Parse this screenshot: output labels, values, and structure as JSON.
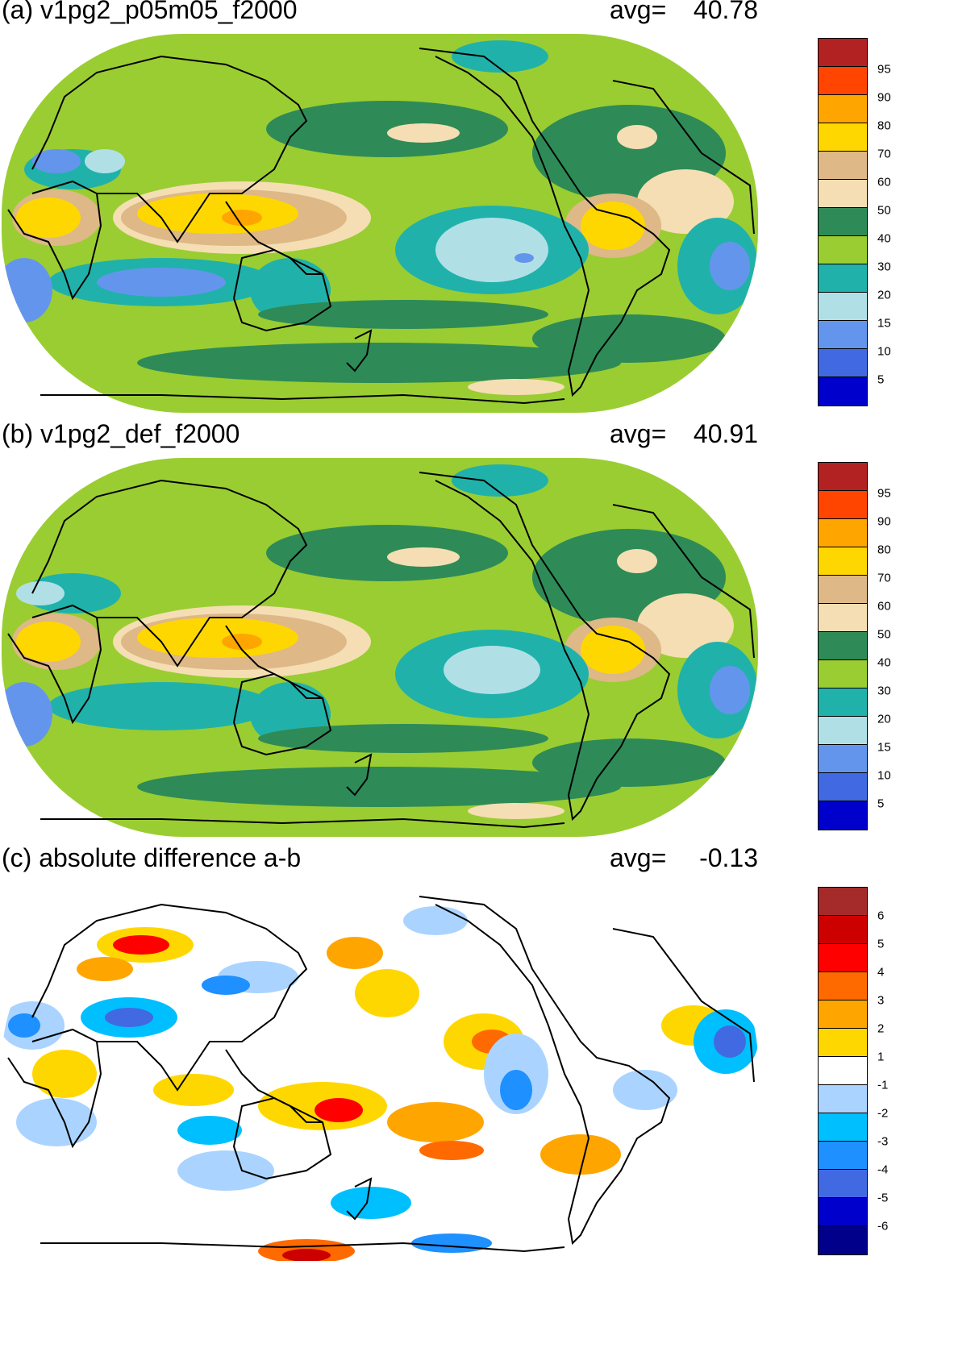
{
  "panels": [
    {
      "title": "(a) v1pg2_p05m05_f2000",
      "avg_label": "avg=",
      "avg_value": "40.78",
      "colorbar": {
        "colors": [
          "#b22222",
          "#ff4500",
          "#ffa500",
          "#ffd700",
          "#deb887",
          "#f5deb3",
          "#2e8b57",
          "#9acd32",
          "#20b2aa",
          "#b0e0e6",
          "#6495ed",
          "#4169e1",
          "#0000cd"
        ],
        "labels": [
          "95",
          "90",
          "80",
          "70",
          "60",
          "50",
          "40",
          "30",
          "20",
          "15",
          "10",
          "5"
        ]
      }
    },
    {
      "title": "(b) v1pg2_def_f2000",
      "avg_label": "avg=",
      "avg_value": "40.91",
      "colorbar": {
        "colors": [
          "#b22222",
          "#ff4500",
          "#ffa500",
          "#ffd700",
          "#deb887",
          "#f5deb3",
          "#2e8b57",
          "#9acd32",
          "#20b2aa",
          "#b0e0e6",
          "#6495ed",
          "#4169e1",
          "#0000cd"
        ],
        "labels": [
          "95",
          "90",
          "80",
          "70",
          "60",
          "50",
          "40",
          "30",
          "20",
          "15",
          "10",
          "5"
        ]
      }
    },
    {
      "title": "(c) absolute difference a-b",
      "avg_label": "avg=",
      "avg_value": "-0.13",
      "colorbar": {
        "colors": [
          "#a52a2a",
          "#cd0000",
          "#ff0000",
          "#ff6a00",
          "#ffa500",
          "#ffd700",
          "#ffffff",
          "#aad4ff",
          "#00bfff",
          "#1e90ff",
          "#4169e1",
          "#0000cd",
          "#00008b"
        ],
        "labels": [
          "6",
          "5",
          "4",
          "3",
          "2",
          "1",
          "-1",
          "-2",
          "-3",
          "-4",
          "-5",
          "-6"
        ]
      }
    }
  ]
}
